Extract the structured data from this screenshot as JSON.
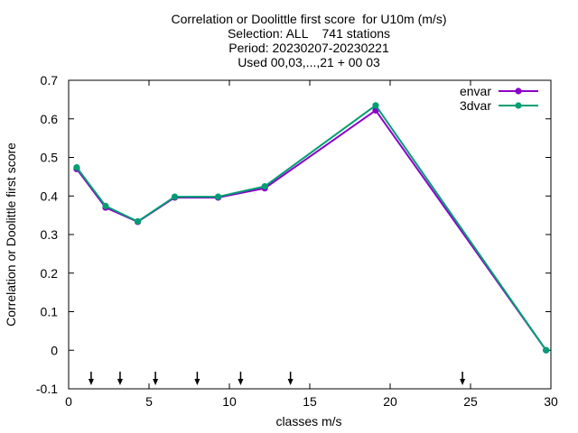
{
  "chart_data": {
    "type": "line",
    "title_lines": [
      "Correlation or Doolittle first score  for U10m (m/s)",
      "Selection: ALL    741 stations",
      "Period: 20230207-20230221",
      "Used 00,03,...,21 + 00 03"
    ],
    "xlabel": "classes m/s",
    "ylabel": "Correlation or Doolittle first score",
    "xlim": [
      0,
      30
    ],
    "ylim": [
      -0.1,
      0.7
    ],
    "xticks": [
      0,
      5,
      10,
      15,
      20,
      25,
      30
    ],
    "yticks": [
      -0.1,
      0,
      0.1,
      0.2,
      0.3,
      0.4,
      0.5,
      0.6,
      0.7
    ],
    "xtick_labels": [
      "0",
      "5",
      "10",
      "15",
      "20",
      "25",
      "30"
    ],
    "ytick_labels": [
      "-0.1",
      "0",
      "0.1",
      "0.2",
      "0.3",
      "0.4",
      "0.5",
      "0.6",
      "0.7"
    ],
    "class_markers": [
      1.4,
      3.2,
      5.4,
      8.0,
      10.7,
      13.8,
      24.5
    ],
    "grid": false,
    "legend_position": "top-right",
    "series": [
      {
        "name": "envar",
        "color": "#8b00c8",
        "x": [
          0.5,
          2.3,
          4.3,
          6.6,
          9.3,
          12.2,
          19.1,
          29.7
        ],
        "y": [
          0.47,
          0.37,
          0.333,
          0.396,
          0.396,
          0.42,
          0.622,
          0.0
        ]
      },
      {
        "name": "3dvar",
        "color": "#009e73",
        "x": [
          0.5,
          2.3,
          4.3,
          6.6,
          9.3,
          12.2,
          19.1,
          29.7
        ],
        "y": [
          0.474,
          0.374,
          0.334,
          0.398,
          0.398,
          0.425,
          0.635,
          0.0
        ]
      }
    ]
  }
}
